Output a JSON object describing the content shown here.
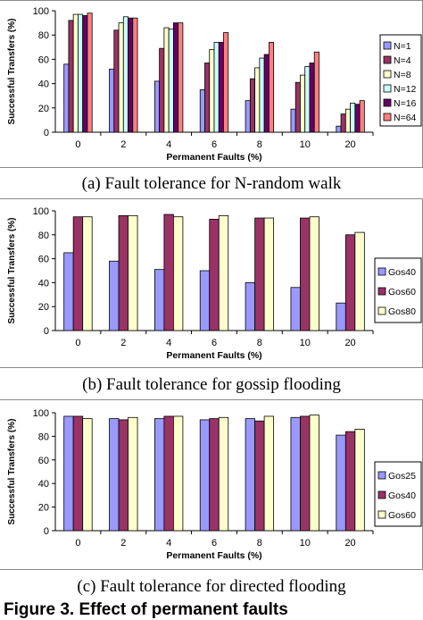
{
  "captions": [
    "(a) Fault tolerance for N-random walk",
    "(b) Fault tolerance for gossip flooding",
    "(c) Fault tolerance for directed flooding"
  ],
  "figure_label": "Figure 3. Effect of permanent faults",
  "chart_data": [
    {
      "type": "bar",
      "title": "",
      "xlabel": "Permanent Faults (%)",
      "ylabel": "Successful Transfers (%)",
      "ylim": [
        0,
        100
      ],
      "yticks": [
        0,
        20,
        40,
        60,
        80,
        100
      ],
      "categories": [
        "0",
        "2",
        "4",
        "6",
        "8",
        "10",
        "20"
      ],
      "legend_position": "right",
      "series": [
        {
          "name": "N=1",
          "color": "#9999ff",
          "values": [
            56,
            52,
            42,
            35,
            26,
            19,
            5
          ]
        },
        {
          "name": "N=4",
          "color": "#993366",
          "values": [
            92,
            84,
            69,
            57,
            44,
            41,
            15
          ]
        },
        {
          "name": "N=8",
          "color": "#ffffcc",
          "values": [
            97,
            90,
            86,
            68,
            53,
            47,
            19
          ]
        },
        {
          "name": "N=12",
          "color": "#ccffff",
          "values": [
            97,
            95,
            85,
            74,
            61,
            54,
            24
          ]
        },
        {
          "name": "N=16",
          "color": "#660066",
          "values": [
            96,
            94,
            90,
            74,
            64,
            57,
            23
          ]
        },
        {
          "name": "N=64",
          "color": "#ff8080",
          "values": [
            98,
            94,
            90,
            82,
            74,
            66,
            26
          ]
        }
      ]
    },
    {
      "type": "bar",
      "title": "",
      "xlabel": "Permanent Faults (%)",
      "ylabel": "Successful Transfers (%)",
      "ylim": [
        0,
        100
      ],
      "yticks": [
        0,
        20,
        40,
        60,
        80,
        100
      ],
      "categories": [
        "0",
        "2",
        "4",
        "6",
        "8",
        "10",
        "20"
      ],
      "legend_position": "right",
      "series": [
        {
          "name": "Gos40",
          "color": "#9999ff",
          "values": [
            65,
            58,
            51,
            50,
            40,
            36,
            23
          ]
        },
        {
          "name": "Gos60",
          "color": "#993366",
          "values": [
            95,
            96,
            97,
            93,
            94,
            94,
            80
          ]
        },
        {
          "name": "Gos80",
          "color": "#ffffcc",
          "values": [
            95,
            96,
            95,
            96,
            94,
            95,
            82
          ]
        }
      ]
    },
    {
      "type": "bar",
      "title": "",
      "xlabel": "Permanent Faults (%)",
      "ylabel": "Successful Transfers (%)",
      "ylim": [
        0,
        100
      ],
      "yticks": [
        0,
        20,
        40,
        60,
        80,
        100
      ],
      "categories": [
        "0",
        "2",
        "4",
        "6",
        "8",
        "10",
        "20"
      ],
      "legend_position": "right",
      "series": [
        {
          "name": "Gos25",
          "color": "#9999ff",
          "values": [
            97,
            95,
            95,
            94,
            95,
            96,
            81
          ]
        },
        {
          "name": "Gos40",
          "color": "#993366",
          "values": [
            97,
            94,
            97,
            95,
            93,
            97,
            84
          ]
        },
        {
          "name": "Gos60",
          "color": "#ffffcc",
          "values": [
            95,
            96,
            97,
            96,
            97,
            98,
            86
          ]
        }
      ]
    }
  ]
}
